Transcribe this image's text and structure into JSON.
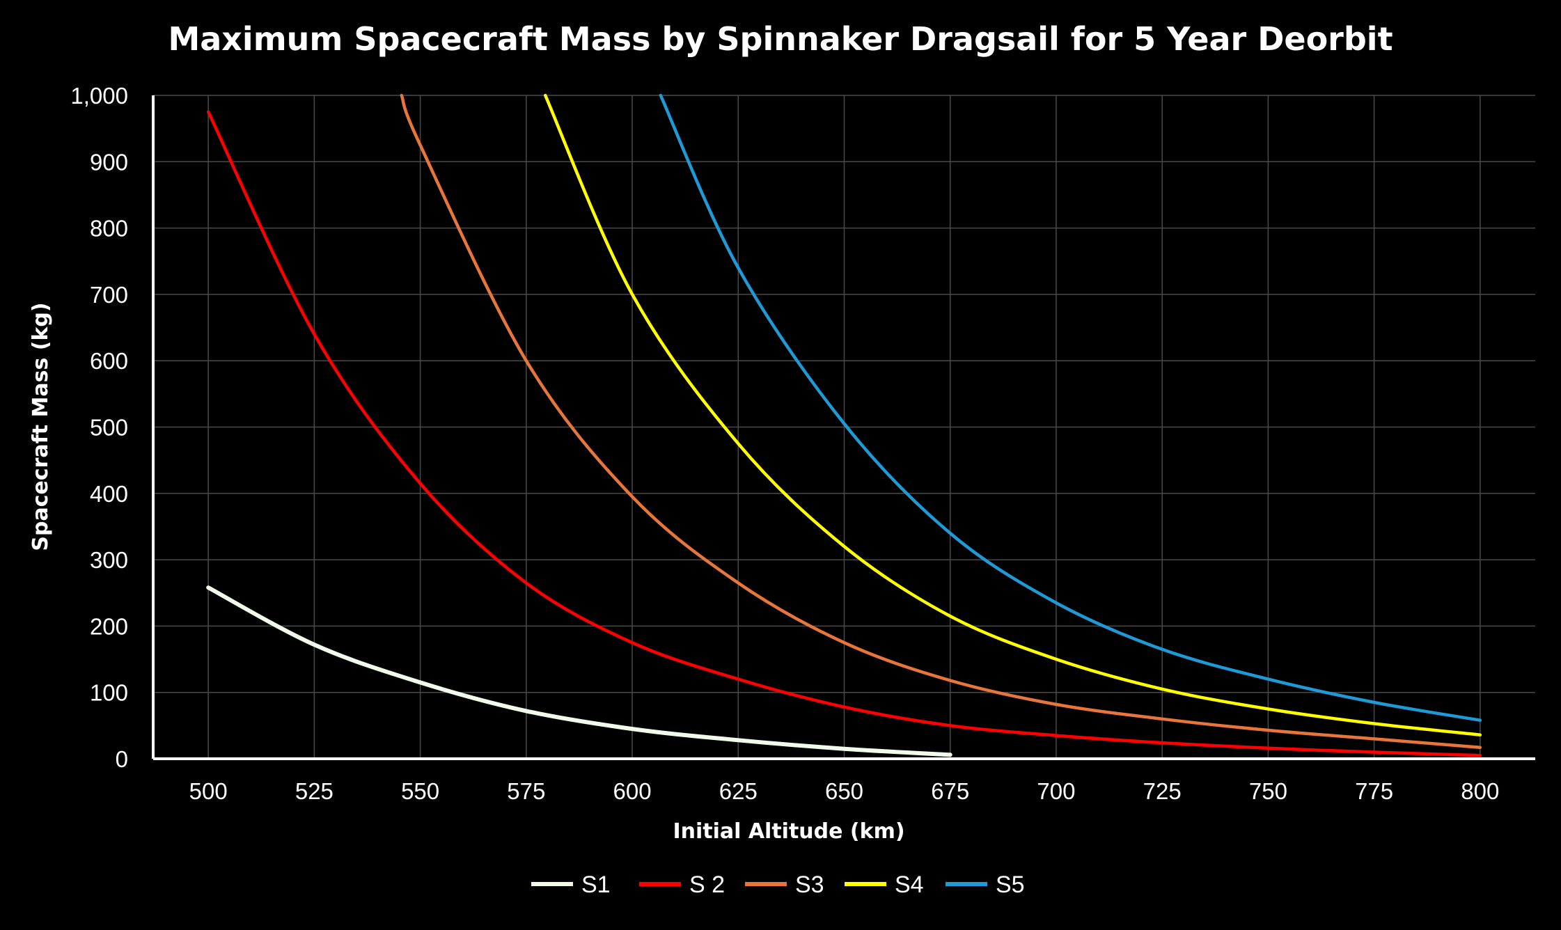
{
  "chart_data": {
    "type": "line",
    "title": "Maximum Spacecraft Mass by Spinnaker Dragsail for 5 Year Deorbit",
    "xlabel": "Initial Altitude (km)",
    "ylabel": "Spacecraft Mass (kg)",
    "xlim": [
      487,
      813
    ],
    "ylim": [
      0,
      1000
    ],
    "x_ticks": [
      "500",
      "525",
      "550",
      "575",
      "600",
      "625",
      "650",
      "675",
      "700",
      "725",
      "750",
      "775",
      "800"
    ],
    "y_ticks": [
      "0",
      "100",
      "200",
      "300",
      "400",
      "500",
      "600",
      "700",
      "800",
      "900",
      "1,000"
    ],
    "x_tick_values": [
      500,
      525,
      550,
      575,
      600,
      625,
      650,
      675,
      700,
      725,
      750,
      775,
      800
    ],
    "y_tick_values": [
      0,
      100,
      200,
      300,
      400,
      500,
      600,
      700,
      800,
      900,
      1000
    ],
    "legend_position": "bottom",
    "series": [
      {
        "name": "S1",
        "color": "#f0fbea",
        "x": [
          500,
          525,
          550,
          575,
          600,
          625,
          650,
          675
        ],
        "values": [
          258,
          172,
          115,
          72,
          45,
          28,
          15,
          6
        ]
      },
      {
        "name": "S 2",
        "color": "#ff0000",
        "x": [
          500,
          525,
          550,
          575,
          600,
          625,
          650,
          675,
          700,
          725,
          750,
          775,
          800
        ],
        "values": [
          975,
          640,
          415,
          265,
          175,
          120,
          78,
          50,
          35,
          24,
          16,
          10,
          5
        ]
      },
      {
        "name": "S3",
        "color": "#e8763a",
        "x": [
          545.6,
          550,
          575,
          600,
          625,
          650,
          675,
          700,
          725,
          750,
          775,
          800
        ],
        "values": [
          1000,
          925,
          600,
          395,
          265,
          175,
          118,
          82,
          60,
          43,
          30,
          17
        ]
      },
      {
        "name": "S4",
        "color": "#ffff00",
        "x": [
          579.5,
          600,
          625,
          650,
          675,
          700,
          725,
          750,
          775,
          800
        ],
        "values": [
          1000,
          700,
          475,
          320,
          215,
          150,
          105,
          75,
          53,
          36
        ]
      },
      {
        "name": "S5",
        "color": "#1e9bd7",
        "x": [
          606.7,
          625,
          650,
          675,
          700,
          725,
          750,
          775,
          800
        ],
        "values": [
          1000,
          740,
          505,
          340,
          235,
          165,
          120,
          85,
          58
        ]
      }
    ]
  }
}
